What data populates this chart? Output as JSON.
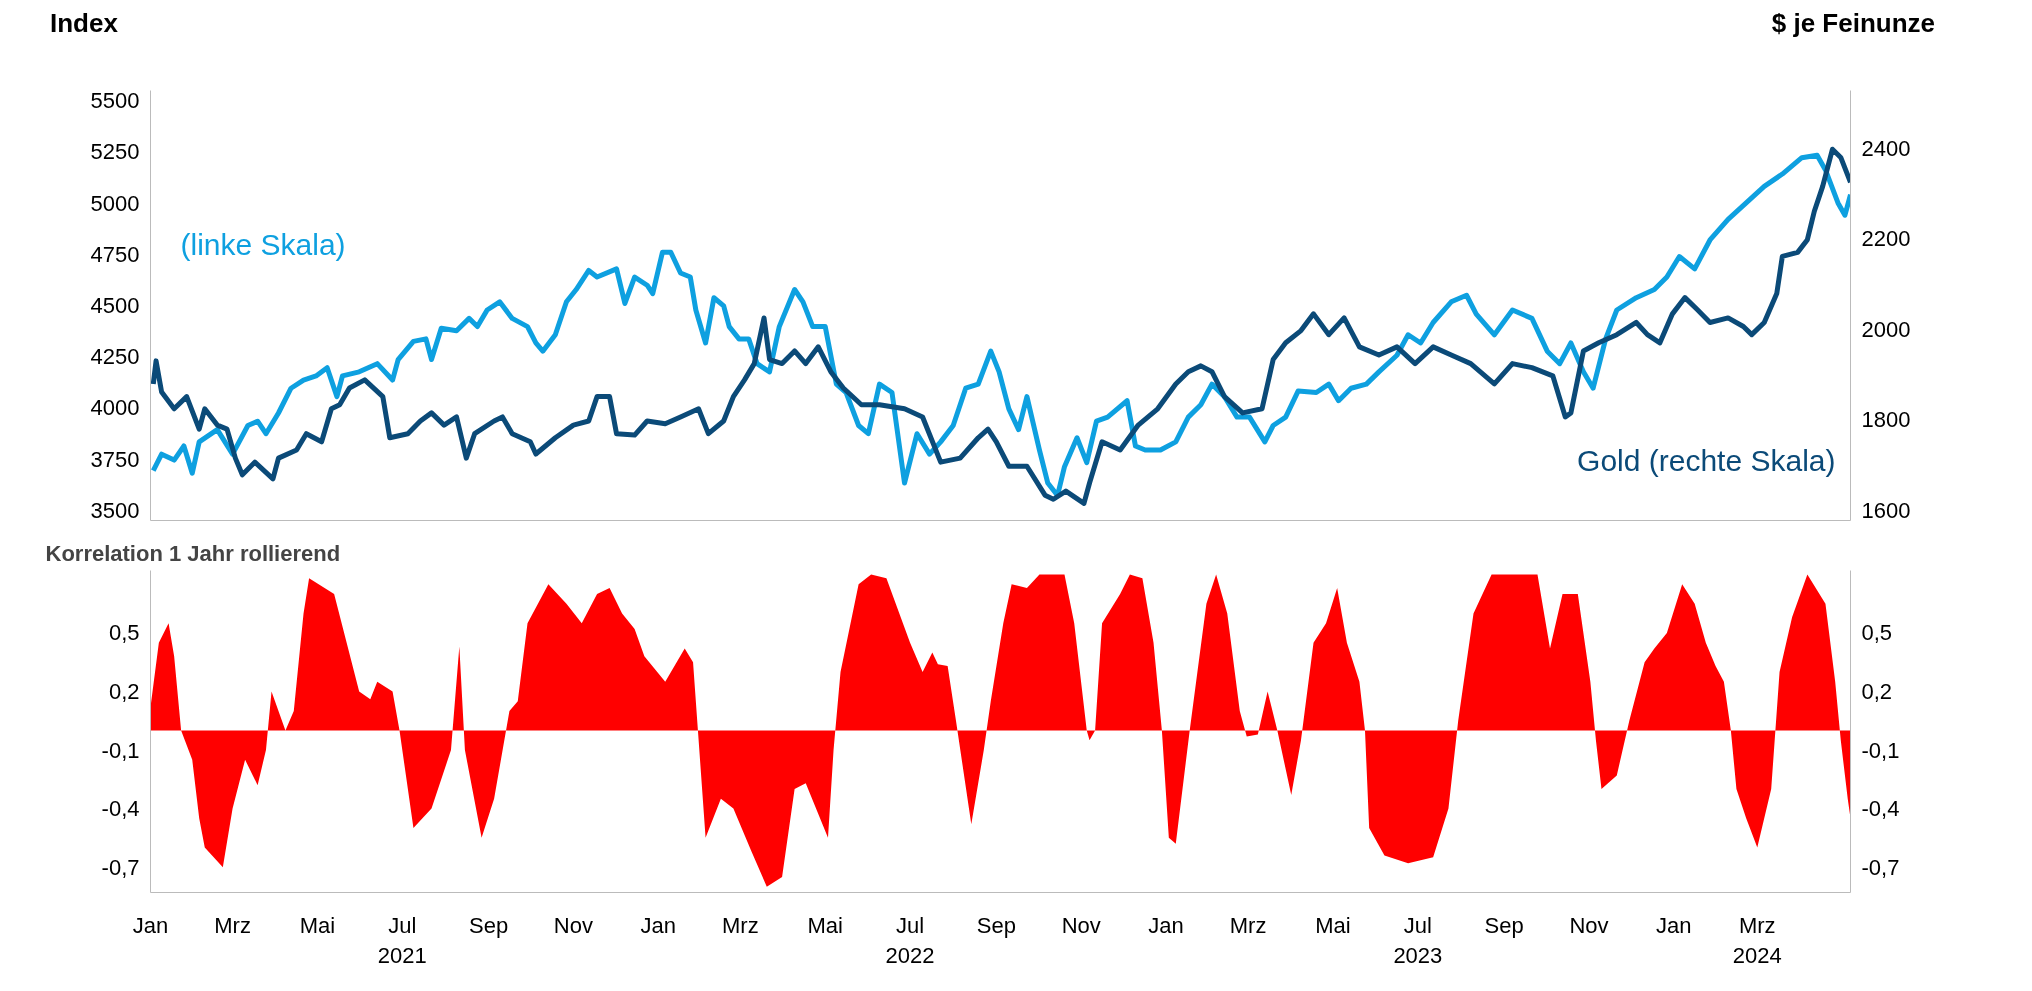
{
  "chart_data": [
    {
      "type": "line",
      "ylabel": "Index",
      "y2label": "$ je Feinunze",
      "xlim": [
        "2021-01-01",
        "2024-05-07"
      ],
      "ylim": [
        3450,
        5550
      ],
      "yticks": [
        3500,
        3750,
        4000,
        4250,
        4500,
        4750,
        5000,
        5250,
        5500
      ],
      "y2lim": [
        1577,
        2528
      ],
      "y2ticks": [
        1600,
        1800,
        2000,
        2200,
        2400
      ],
      "tick_labels": "y",
      "grid": false,
      "legend": false,
      "line_style": "solid",
      "marker": "none",
      "series": [
        {
          "name": "(linke Skala)",
          "color": "#0ea0e0",
          "x": [
            "2021-01-03",
            "2021-01-09",
            "2021-01-18",
            "2021-01-25",
            "2021-01-31",
            "2021-02-05",
            "2021-02-18",
            "2021-03-01",
            "2021-03-12",
            "2021-03-19",
            "2021-03-25",
            "2021-04-03",
            "2021-04-12",
            "2021-04-21",
            "2021-04-30",
            "2021-05-08",
            "2021-05-15",
            "2021-05-19",
            "2021-05-31",
            "2021-06-13",
            "2021-06-24",
            "2021-06-28",
            "2021-07-09",
            "2021-07-18",
            "2021-07-22",
            "2021-07-29",
            "2021-08-09",
            "2021-08-18",
            "2021-08-24",
            "2021-08-31",
            "2021-09-09",
            "2021-09-18",
            "2021-09-29",
            "2021-10-05",
            "2021-10-10",
            "2021-10-19",
            "2021-10-27",
            "2021-11-03",
            "2021-11-12",
            "2021-11-18",
            "2021-12-02",
            "2021-12-08",
            "2021-12-15",
            "2021-12-24",
            "2021-12-28",
            "2022-01-04",
            "2022-01-10",
            "2022-01-17",
            "2022-01-24",
            "2022-01-28",
            "2022-02-04",
            "2022-02-10",
            "2022-02-17",
            "2022-02-21",
            "2022-02-28",
            "2022-03-07",
            "2022-03-13",
            "2022-03-22",
            "2022-03-29",
            "2022-04-09",
            "2022-04-15",
            "2022-04-22",
            "2022-05-01",
            "2022-05-09",
            "2022-05-16",
            "2022-05-25",
            "2022-06-01",
            "2022-06-09",
            "2022-06-18",
            "2022-06-27",
            "2022-07-06",
            "2022-07-15",
            "2022-07-23",
            "2022-08-01",
            "2022-08-10",
            "2022-08-19",
            "2022-08-28",
            "2022-09-03",
            "2022-09-10",
            "2022-09-17",
            "2022-09-23",
            "2022-10-02",
            "2022-10-08",
            "2022-10-15",
            "2022-10-20",
            "2022-10-29",
            "2022-11-05",
            "2022-11-12",
            "2022-11-20",
            "2022-12-04",
            "2022-12-10",
            "2022-12-17",
            "2022-12-28",
            "2023-01-08",
            "2023-01-17",
            "2023-01-26",
            "2023-02-03",
            "2023-02-12",
            "2023-02-21",
            "2023-03-02",
            "2023-03-13",
            "2023-03-19",
            "2023-03-28",
            "2023-04-06",
            "2023-04-19",
            "2023-04-28",
            "2023-05-05",
            "2023-05-14",
            "2023-05-25",
            "2023-06-03",
            "2023-06-16",
            "2023-06-24",
            "2023-07-03",
            "2023-07-12",
            "2023-07-25",
            "2023-08-05",
            "2023-08-12",
            "2023-08-25",
            "2023-09-07",
            "2023-09-21",
            "2023-10-02",
            "2023-10-11",
            "2023-10-19",
            "2023-10-28",
            "2023-11-04",
            "2023-11-13",
            "2023-11-21",
            "2023-12-05",
            "2023-12-18",
            "2023-12-27",
            "2024-01-05",
            "2024-01-16",
            "2024-01-27",
            "2024-02-09",
            "2024-02-22",
            "2024-03-06",
            "2024-03-19",
            "2024-04-02",
            "2024-04-13",
            "2024-04-19",
            "2024-04-28",
            "2024-05-03",
            "2024-05-07"
          ],
          "values": [
            3693,
            3774,
            3745,
            3814,
            3681,
            3834,
            3894,
            3774,
            3914,
            3935,
            3874,
            3975,
            4096,
            4136,
            4156,
            4196,
            4055,
            4156,
            4176,
            4216,
            4136,
            4236,
            4325,
            4337,
            4236,
            4389,
            4377,
            4437,
            4397,
            4478,
            4518,
            4437,
            4397,
            4317,
            4277,
            4357,
            4518,
            4578,
            4671,
            4639,
            4679,
            4510,
            4639,
            4599,
            4558,
            4760,
            4760,
            4659,
            4639,
            4478,
            4317,
            4538,
            4498,
            4397,
            4337,
            4337,
            4216,
            4176,
            4397,
            4578,
            4518,
            4397,
            4397,
            4116,
            4075,
            3914,
            3874,
            4116,
            4075,
            3633,
            3874,
            3774,
            3834,
            3914,
            4096,
            4116,
            4277,
            4176,
            3995,
            3894,
            4055,
            3794,
            3633,
            3572,
            3713,
            3854,
            3733,
            3935,
            3955,
            4035,
            3814,
            3794,
            3794,
            3834,
            3955,
            4015,
            4116,
            4055,
            3955,
            3955,
            3834,
            3914,
            3955,
            4083,
            4075,
            4116,
            4035,
            4096,
            4116,
            4176,
            4257,
            4357,
            4317,
            4417,
            4518,
            4550,
            4458,
            4357,
            4478,
            4437,
            4277,
            4216,
            4317,
            4176,
            4096,
            4337,
            4478,
            4538,
            4578,
            4639,
            4739,
            4679,
            4820,
            4921,
            5001,
            5082,
            5142,
            5222,
            5234,
            5162,
            5001,
            4941,
            5041
          ]
        },
        {
          "name": "Gold (rechte Skala)",
          "color": "#0b4a78",
          "axis": "y2",
          "x": [
            "2021-01-03",
            "2021-01-05",
            "2021-01-09",
            "2021-01-18",
            "2021-01-27",
            "2021-02-05",
            "2021-02-09",
            "2021-02-18",
            "2021-02-25",
            "2021-03-03",
            "2021-03-08",
            "2021-03-17",
            "2021-03-30",
            "2021-04-03",
            "2021-04-16",
            "2021-04-23",
            "2021-05-04",
            "2021-05-11",
            "2021-05-17",
            "2021-05-24",
            "2021-06-04",
            "2021-06-17",
            "2021-06-22",
            "2021-07-05",
            "2021-07-14",
            "2021-07-22",
            "2021-07-31",
            "2021-08-09",
            "2021-08-16",
            "2021-08-22",
            "2021-09-05",
            "2021-09-11",
            "2021-09-18",
            "2021-10-01",
            "2021-10-05",
            "2021-10-19",
            "2021-11-01",
            "2021-11-12",
            "2021-11-18",
            "2021-11-27",
            "2021-12-02",
            "2021-12-15",
            "2021-12-24",
            "2022-01-06",
            "2022-01-17",
            "2022-01-30",
            "2022-02-06",
            "2022-02-17",
            "2022-02-24",
            "2022-03-04",
            "2022-03-11",
            "2022-03-18",
            "2022-03-22",
            "2022-03-31",
            "2022-04-09",
            "2022-04-17",
            "2022-04-26",
            "2022-05-05",
            "2022-05-14",
            "2022-05-27",
            "2022-06-09",
            "2022-06-27",
            "2022-07-10",
            "2022-07-23",
            "2022-08-06",
            "2022-08-19",
            "2022-08-26",
            "2022-09-01",
            "2022-09-10",
            "2022-09-23",
            "2022-10-06",
            "2022-10-12",
            "2022-10-21",
            "2022-11-03",
            "2022-11-07",
            "2022-11-16",
            "2022-11-29",
            "2022-12-12",
            "2022-12-26",
            "2023-01-08",
            "2023-01-17",
            "2023-01-26",
            "2023-02-03",
            "2023-02-12",
            "2023-02-25",
            "2023-03-11",
            "2023-03-19",
            "2023-03-28",
            "2023-04-08",
            "2023-04-17",
            "2023-04-28",
            "2023-05-09",
            "2023-05-20",
            "2023-06-03",
            "2023-06-16",
            "2023-06-29",
            "2023-07-12",
            "2023-07-25",
            "2023-08-08",
            "2023-08-25",
            "2023-09-07",
            "2023-09-21",
            "2023-10-06",
            "2023-10-15",
            "2023-10-19",
            "2023-10-28",
            "2023-11-08",
            "2023-11-21",
            "2023-12-05",
            "2023-12-13",
            "2023-12-22",
            "2023-12-31",
            "2024-01-09",
            "2024-01-18",
            "2024-01-27",
            "2024-02-09",
            "2024-02-20",
            "2024-02-26",
            "2024-03-06",
            "2024-03-15",
            "2024-03-19",
            "2024-03-30",
            "2024-04-06",
            "2024-04-11",
            "2024-04-17",
            "2024-04-24",
            "2024-04-30",
            "2024-05-07"
          ],
          "values": [
            1879,
            1930,
            1861,
            1824,
            1851,
            1779,
            1824,
            1788,
            1779,
            1715,
            1678,
            1706,
            1669,
            1715,
            1733,
            1769,
            1751,
            1824,
            1833,
            1870,
            1888,
            1851,
            1760,
            1769,
            1797,
            1815,
            1788,
            1806,
            1715,
            1769,
            1797,
            1806,
            1769,
            1751,
            1724,
            1760,
            1788,
            1797,
            1851,
            1851,
            1769,
            1766,
            1797,
            1791,
            1806,
            1824,
            1769,
            1797,
            1851,
            1888,
            1924,
            2025,
            1933,
            1924,
            1952,
            1924,
            1961,
            1906,
            1870,
            1833,
            1833,
            1824,
            1806,
            1706,
            1715,
            1760,
            1779,
            1751,
            1697,
            1697,
            1633,
            1624,
            1642,
            1615,
            1660,
            1751,
            1733,
            1788,
            1824,
            1879,
            1906,
            1919,
            1906,
            1851,
            1815,
            1824,
            1933,
            1970,
            1997,
            2034,
            1988,
            2025,
            1961,
            1943,
            1961,
            1924,
            1961,
            1943,
            1924,
            1879,
            1924,
            1915,
            1897,
            1806,
            1815,
            1952,
            1970,
            1988,
            2015,
            1988,
            1970,
            2034,
            2070,
            2043,
            2015,
            2025,
            2006,
            1988,
            2015,
            2079,
            2161,
            2170,
            2198,
            2261,
            2316,
            2398,
            2380,
            2325
          ]
        }
      ]
    },
    {
      "type": "area",
      "title": "Korrelation 1 Jahr rollierend",
      "xlim": [
        "2021-01-01",
        "2024-05-07"
      ],
      "ylim": [
        -0.83,
        0.82
      ],
      "y2lim": [
        -0.83,
        0.82
      ],
      "grid": false,
      "legend": false,
      "xticks": [
        {
          "value": "2021-01-01",
          "label": "Jan"
        },
        {
          "value": "2021-03-01",
          "label": "Mrz"
        },
        {
          "value": "2021-05-01",
          "label": "Mai"
        },
        {
          "value": "2021-07-01",
          "label": "Jul\n2021"
        },
        {
          "value": "2021-09-01",
          "label": "Sep"
        },
        {
          "value": "2021-11-01",
          "label": "Nov"
        },
        {
          "value": "2022-01-01",
          "label": "Jan"
        },
        {
          "value": "2022-03-01",
          "label": "Mrz"
        },
        {
          "value": "2022-05-01",
          "label": "Mai"
        },
        {
          "value": "2022-07-01",
          "label": "Jul\n2022"
        },
        {
          "value": "2022-09-01",
          "label": "Sep"
        },
        {
          "value": "2022-11-01",
          "label": "Nov"
        },
        {
          "value": "2023-01-01",
          "label": "Jan"
        },
        {
          "value": "2023-03-01",
          "label": "Mrz"
        },
        {
          "value": "2023-05-01",
          "label": "Mai"
        },
        {
          "value": "2023-07-01",
          "label": "Jul\n2023"
        },
        {
          "value": "2023-09-01",
          "label": "Sep"
        },
        {
          "value": "2023-11-01",
          "label": "Nov"
        },
        {
          "value": "2024-01-01",
          "label": "Jan"
        },
        {
          "value": "2024-03-01",
          "label": "Mrz\n2024"
        }
      ],
      "yticks": [
        {
          "value": -0.7,
          "label": "-0,7"
        },
        {
          "value": -0.4,
          "label": "-0,4"
        },
        {
          "value": -0.1,
          "label": "-0,1"
        },
        {
          "value": 0.2,
          "label": "0,2"
        },
        {
          "value": 0.5,
          "label": "0,5"
        }
      ],
      "y2ticks": [
        {
          "value": -0.7,
          "label": "-0,7"
        },
        {
          "value": -0.4,
          "label": "-0,4"
        },
        {
          "value": -0.1,
          "label": "-0,1"
        },
        {
          "value": 0.2,
          "label": "0,2"
        },
        {
          "value": 0.5,
          "label": "0,5"
        }
      ],
      "series": [
        {
          "color": "#ff0000",
          "x": [
            "2021-01-01",
            "2021-01-07",
            "2021-01-14",
            "2021-01-18",
            "2021-01-23",
            "2021-01-31",
            "2021-02-05",
            "2021-02-09",
            "2021-02-22",
            "2021-03-01",
            "2021-03-10",
            "2021-03-19",
            "2021-03-25",
            "2021-03-29",
            "2021-04-08",
            "2021-04-14",
            "2021-04-21",
            "2021-04-25",
            "2021-05-13",
            "2021-05-22",
            "2021-05-31",
            "2021-06-08",
            "2021-06-13",
            "2021-06-24",
            "2021-06-29",
            "2021-07-09",
            "2021-07-22",
            "2021-08-05",
            "2021-08-11",
            "2021-08-15",
            "2021-08-27",
            "2021-09-05",
            "2021-09-16",
            "2021-09-22",
            "2021-09-29",
            "2021-10-14",
            "2021-10-27",
            "2021-11-07",
            "2021-11-18",
            "2021-11-27",
            "2021-12-06",
            "2021-12-15",
            "2021-12-22",
            "2022-01-06",
            "2022-01-20",
            "2022-01-26",
            "2022-01-30",
            "2022-02-04",
            "2022-02-15",
            "2022-02-24",
            "2022-03-09",
            "2022-03-20",
            "2022-03-31",
            "2022-04-09",
            "2022-04-17",
            "2022-05-03",
            "2022-05-07",
            "2022-05-12",
            "2022-05-25",
            "2022-06-03",
            "2022-06-14",
            "2022-07-01",
            "2022-07-10",
            "2022-07-17",
            "2022-07-21",
            "2022-07-28",
            "2022-08-03",
            "2022-08-14",
            "2022-08-23",
            "2022-08-28",
            "2022-09-06",
            "2022-09-12",
            "2022-09-23",
            "2022-10-02",
            "2022-10-20",
            "2022-10-27",
            "2022-11-05",
            "2022-11-07",
            "2022-11-11",
            "2022-11-16",
            "2022-11-29",
            "2022-12-06",
            "2022-12-15",
            "2022-12-23",
            "2022-12-29",
            "2023-01-03",
            "2023-01-08",
            "2023-01-18",
            "2023-01-30",
            "2023-02-06",
            "2023-02-14",
            "2023-02-23",
            "2023-02-28",
            "2023-03-08",
            "2023-03-15",
            "2023-03-22",
            "2023-04-01",
            "2023-04-08",
            "2023-04-17",
            "2023-04-26",
            "2023-05-04",
            "2023-05-11",
            "2023-05-20",
            "2023-05-24",
            "2023-05-27",
            "2023-06-07",
            "2023-06-24",
            "2023-07-12",
            "2023-07-23",
            "2023-07-30",
            "2023-08-10",
            "2023-08-23",
            "2023-09-25",
            "2023-10-04",
            "2023-10-13",
            "2023-10-24",
            "2023-11-02",
            "2023-11-06",
            "2023-11-10",
            "2023-11-21",
            "2023-11-30",
            "2023-12-11",
            "2023-12-18",
            "2023-12-27",
            "2024-01-07",
            "2024-01-16",
            "2024-01-24",
            "2024-01-31",
            "2024-02-06",
            "2024-02-11",
            "2024-02-15",
            "2024-02-22",
            "2024-03-01",
            "2024-03-11",
            "2024-03-17",
            "2024-03-26",
            "2024-04-06",
            "2024-04-19",
            "2024-04-26",
            "2024-04-30",
            "2024-05-05",
            "2024-05-07"
          ],
          "values": [
            0.12,
            0.45,
            0.55,
            0.38,
            0,
            -0.15,
            -0.45,
            -0.6,
            -0.7,
            -0.4,
            -0.15,
            -0.28,
            -0.1,
            0.2,
            0,
            0.1,
            0.6,
            0.78,
            0.7,
            0.45,
            0.2,
            0.16,
            0.25,
            0.2,
            0,
            -0.5,
            -0.4,
            -0.1,
            0.43,
            -0.1,
            -0.55,
            -0.35,
            0.1,
            0.15,
            0.55,
            0.75,
            0.65,
            0.55,
            0.7,
            0.73,
            0.6,
            0.52,
            0.38,
            0.25,
            0.42,
            0.35,
            -0.05,
            -0.55,
            -0.35,
            -0.4,
            -0.62,
            -0.8,
            -0.75,
            -0.3,
            -0.27,
            -0.55,
            -0.1,
            0.3,
            0.75,
            0.8,
            0.78,
            0.45,
            0.3,
            0.4,
            0.34,
            0.33,
            0.05,
            -0.48,
            -0.1,
            0.15,
            0.55,
            0.75,
            0.73,
            0.8,
            0.8,
            0.55,
            0,
            -0.05,
            0,
            0.55,
            0.7,
            0.8,
            0.78,
            0.45,
            0,
            -0.55,
            -0.58,
            0,
            0.65,
            0.8,
            0.6,
            0.1,
            -0.03,
            -0.02,
            0.2,
            0,
            -0.33,
            -0.05,
            0.45,
            0.55,
            0.73,
            0.45,
            0.25,
            0,
            -0.5,
            -0.64,
            -0.68,
            -0.65,
            -0.4,
            0.05,
            0.6,
            0.8,
            0.8,
            0.42,
            0.7,
            0.7,
            0.25,
            -0.05,
            -0.3,
            -0.23,
            0.05,
            0.35,
            0.42,
            0.5,
            0.75,
            0.65,
            0.45,
            0.33,
            0.25,
            0,
            -0.3,
            -0.45,
            -0.6,
            -0.3,
            0.3,
            0.58,
            0.8,
            0.65,
            0.25,
            -0.05,
            -0.35,
            -0.45
          ]
        }
      ]
    }
  ]
}
